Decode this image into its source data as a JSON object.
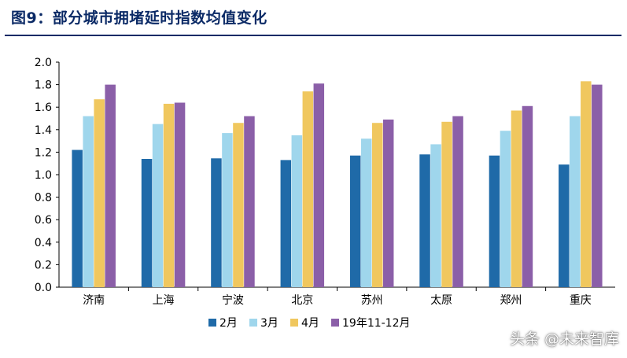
{
  "figure": {
    "title": "图9：部分城市拥堵延时指数均值变化"
  },
  "chart_data": {
    "type": "bar",
    "categories": [
      "济南",
      "上海",
      "宁波",
      "北京",
      "苏州",
      "太原",
      "郑州",
      "重庆"
    ],
    "series": [
      {
        "name": "2月",
        "color": "#1f6aa8",
        "values": [
          1.22,
          1.14,
          1.145,
          1.13,
          1.17,
          1.18,
          1.17,
          1.09
        ]
      },
      {
        "name": "3月",
        "color": "#9fd6ec",
        "values": [
          1.52,
          1.45,
          1.37,
          1.35,
          1.32,
          1.27,
          1.39,
          1.52
        ]
      },
      {
        "name": "4月",
        "color": "#f0c75e",
        "values": [
          1.67,
          1.63,
          1.46,
          1.74,
          1.46,
          1.47,
          1.57,
          1.83
        ]
      },
      {
        "name": "19年11-12月",
        "color": "#8b5fa8",
        "values": [
          1.8,
          1.64,
          1.52,
          1.81,
          1.49,
          1.52,
          1.61,
          1.8
        ]
      }
    ],
    "ylim": [
      0,
      2.0
    ],
    "yticks": [
      "0.0",
      "0.2",
      "0.4",
      "0.6",
      "0.8",
      "1.0",
      "1.2",
      "1.4",
      "1.6",
      "1.8",
      "2.0"
    ],
    "grid": false,
    "legend_position": "bottom"
  },
  "watermark": {
    "text": "头条 @未来智库"
  }
}
